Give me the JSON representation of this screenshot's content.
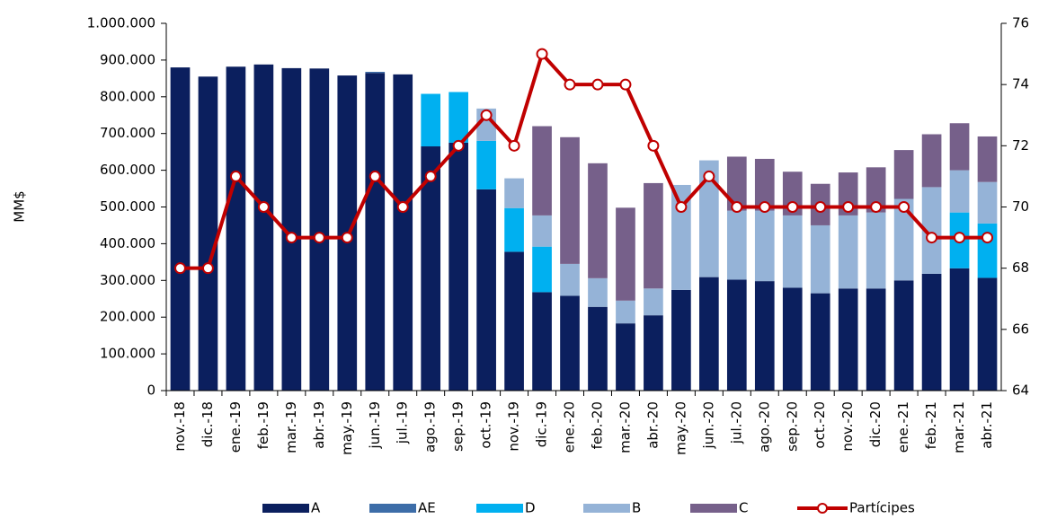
{
  "chart_data": {
    "type": "bar",
    "stacked": true,
    "y_label": "MM$",
    "categories": [
      "nov.-18",
      "dic.-18",
      "ene.-19",
      "feb.-19",
      "mar.-19",
      "abr.-19",
      "may.-19",
      "jun.-19",
      "jul.-19",
      "ago.-19",
      "sep.-19",
      "oct.-19",
      "nov.-19",
      "dic.-19",
      "ene.-20",
      "feb.-20",
      "mar.-20",
      "abr.-20",
      "may.-20",
      "jun.-20",
      "jul.-20",
      "ago.-20",
      "sep.-20",
      "oct.-20",
      "nov.-20",
      "dic.-20",
      "ene.-21",
      "feb.-21",
      "mar.-21",
      "abr.-21"
    ],
    "series": [
      {
        "name": "A",
        "color": "#0b1f5e",
        "values": [
          880000,
          855000,
          882000,
          888000,
          878000,
          877000,
          858000,
          865000,
          861000,
          665000,
          675000,
          548000,
          378000,
          268000,
          258000,
          228000,
          183000,
          205000,
          274000,
          309000,
          302000,
          298000,
          280000,
          265000,
          278000,
          278000,
          300000,
          318000,
          333000,
          307000
        ]
      },
      {
        "name": "AE",
        "color": "#3d6da8",
        "values": [
          0,
          0,
          0,
          0,
          0,
          0,
          0,
          3000,
          0,
          0,
          0,
          0,
          0,
          0,
          0,
          0,
          0,
          0,
          0,
          0,
          0,
          0,
          0,
          0,
          0,
          0,
          0,
          0,
          0,
          0
        ]
      },
      {
        "name": "D",
        "color": "#00b0f0",
        "values": [
          0,
          0,
          0,
          0,
          0,
          0,
          0,
          0,
          0,
          143000,
          138000,
          132000,
          119000,
          124000,
          0,
          0,
          0,
          0,
          0,
          0,
          0,
          0,
          0,
          0,
          0,
          0,
          0,
          0,
          152000,
          148000
        ]
      },
      {
        "name": "B",
        "color": "#95b3d7",
        "values": [
          0,
          0,
          0,
          0,
          0,
          0,
          0,
          0,
          0,
          0,
          0,
          88000,
          81000,
          85000,
          87000,
          78000,
          62000,
          73000,
          286000,
          318000,
          188000,
          192000,
          197000,
          185000,
          199000,
          207000,
          222000,
          236000,
          115000,
          113000
        ]
      },
      {
        "name": "C",
        "color": "#76608a",
        "values": [
          0,
          0,
          0,
          0,
          0,
          0,
          0,
          0,
          0,
          0,
          0,
          0,
          0,
          243000,
          345000,
          313000,
          253000,
          287000,
          0,
          0,
          147000,
          141000,
          119000,
          113000,
          117000,
          123000,
          133000,
          144000,
          128000,
          124000
        ]
      },
      {
        "name": "Partícipes",
        "type": "line",
        "axis": "y2",
        "color": "#c00000",
        "values": [
          68,
          68,
          71,
          70,
          69,
          69,
          69,
          71,
          70,
          71,
          72,
          73,
          72,
          75,
          74,
          74,
          74,
          72,
          70,
          71,
          70,
          70,
          70,
          70,
          70,
          70,
          70,
          69,
          69,
          69
        ]
      }
    ],
    "ylim": [
      0,
      1000000
    ],
    "yticks": [
      0,
      {
        "value": 100000,
        "label": "100.000"
      },
      {
        "value": 200000,
        "label": "200.000"
      },
      {
        "value": 300000,
        "label": "300.000"
      },
      {
        "value": 400000,
        "label": "400.000"
      },
      {
        "value": 500000,
        "label": "500.000"
      },
      {
        "value": 600000,
        "label": "600.000"
      },
      {
        "value": 700000,
        "label": "700.000"
      },
      {
        "value": 800000,
        "label": "800.000"
      },
      {
        "value": 900000,
        "label": "900.000"
      },
      {
        "value": 1000000,
        "label": "1.000.000"
      }
    ],
    "y2lim": [
      64,
      76
    ],
    "y2ticks": [
      64,
      66,
      68,
      70,
      72,
      74,
      76
    ],
    "legend": "bottom"
  }
}
